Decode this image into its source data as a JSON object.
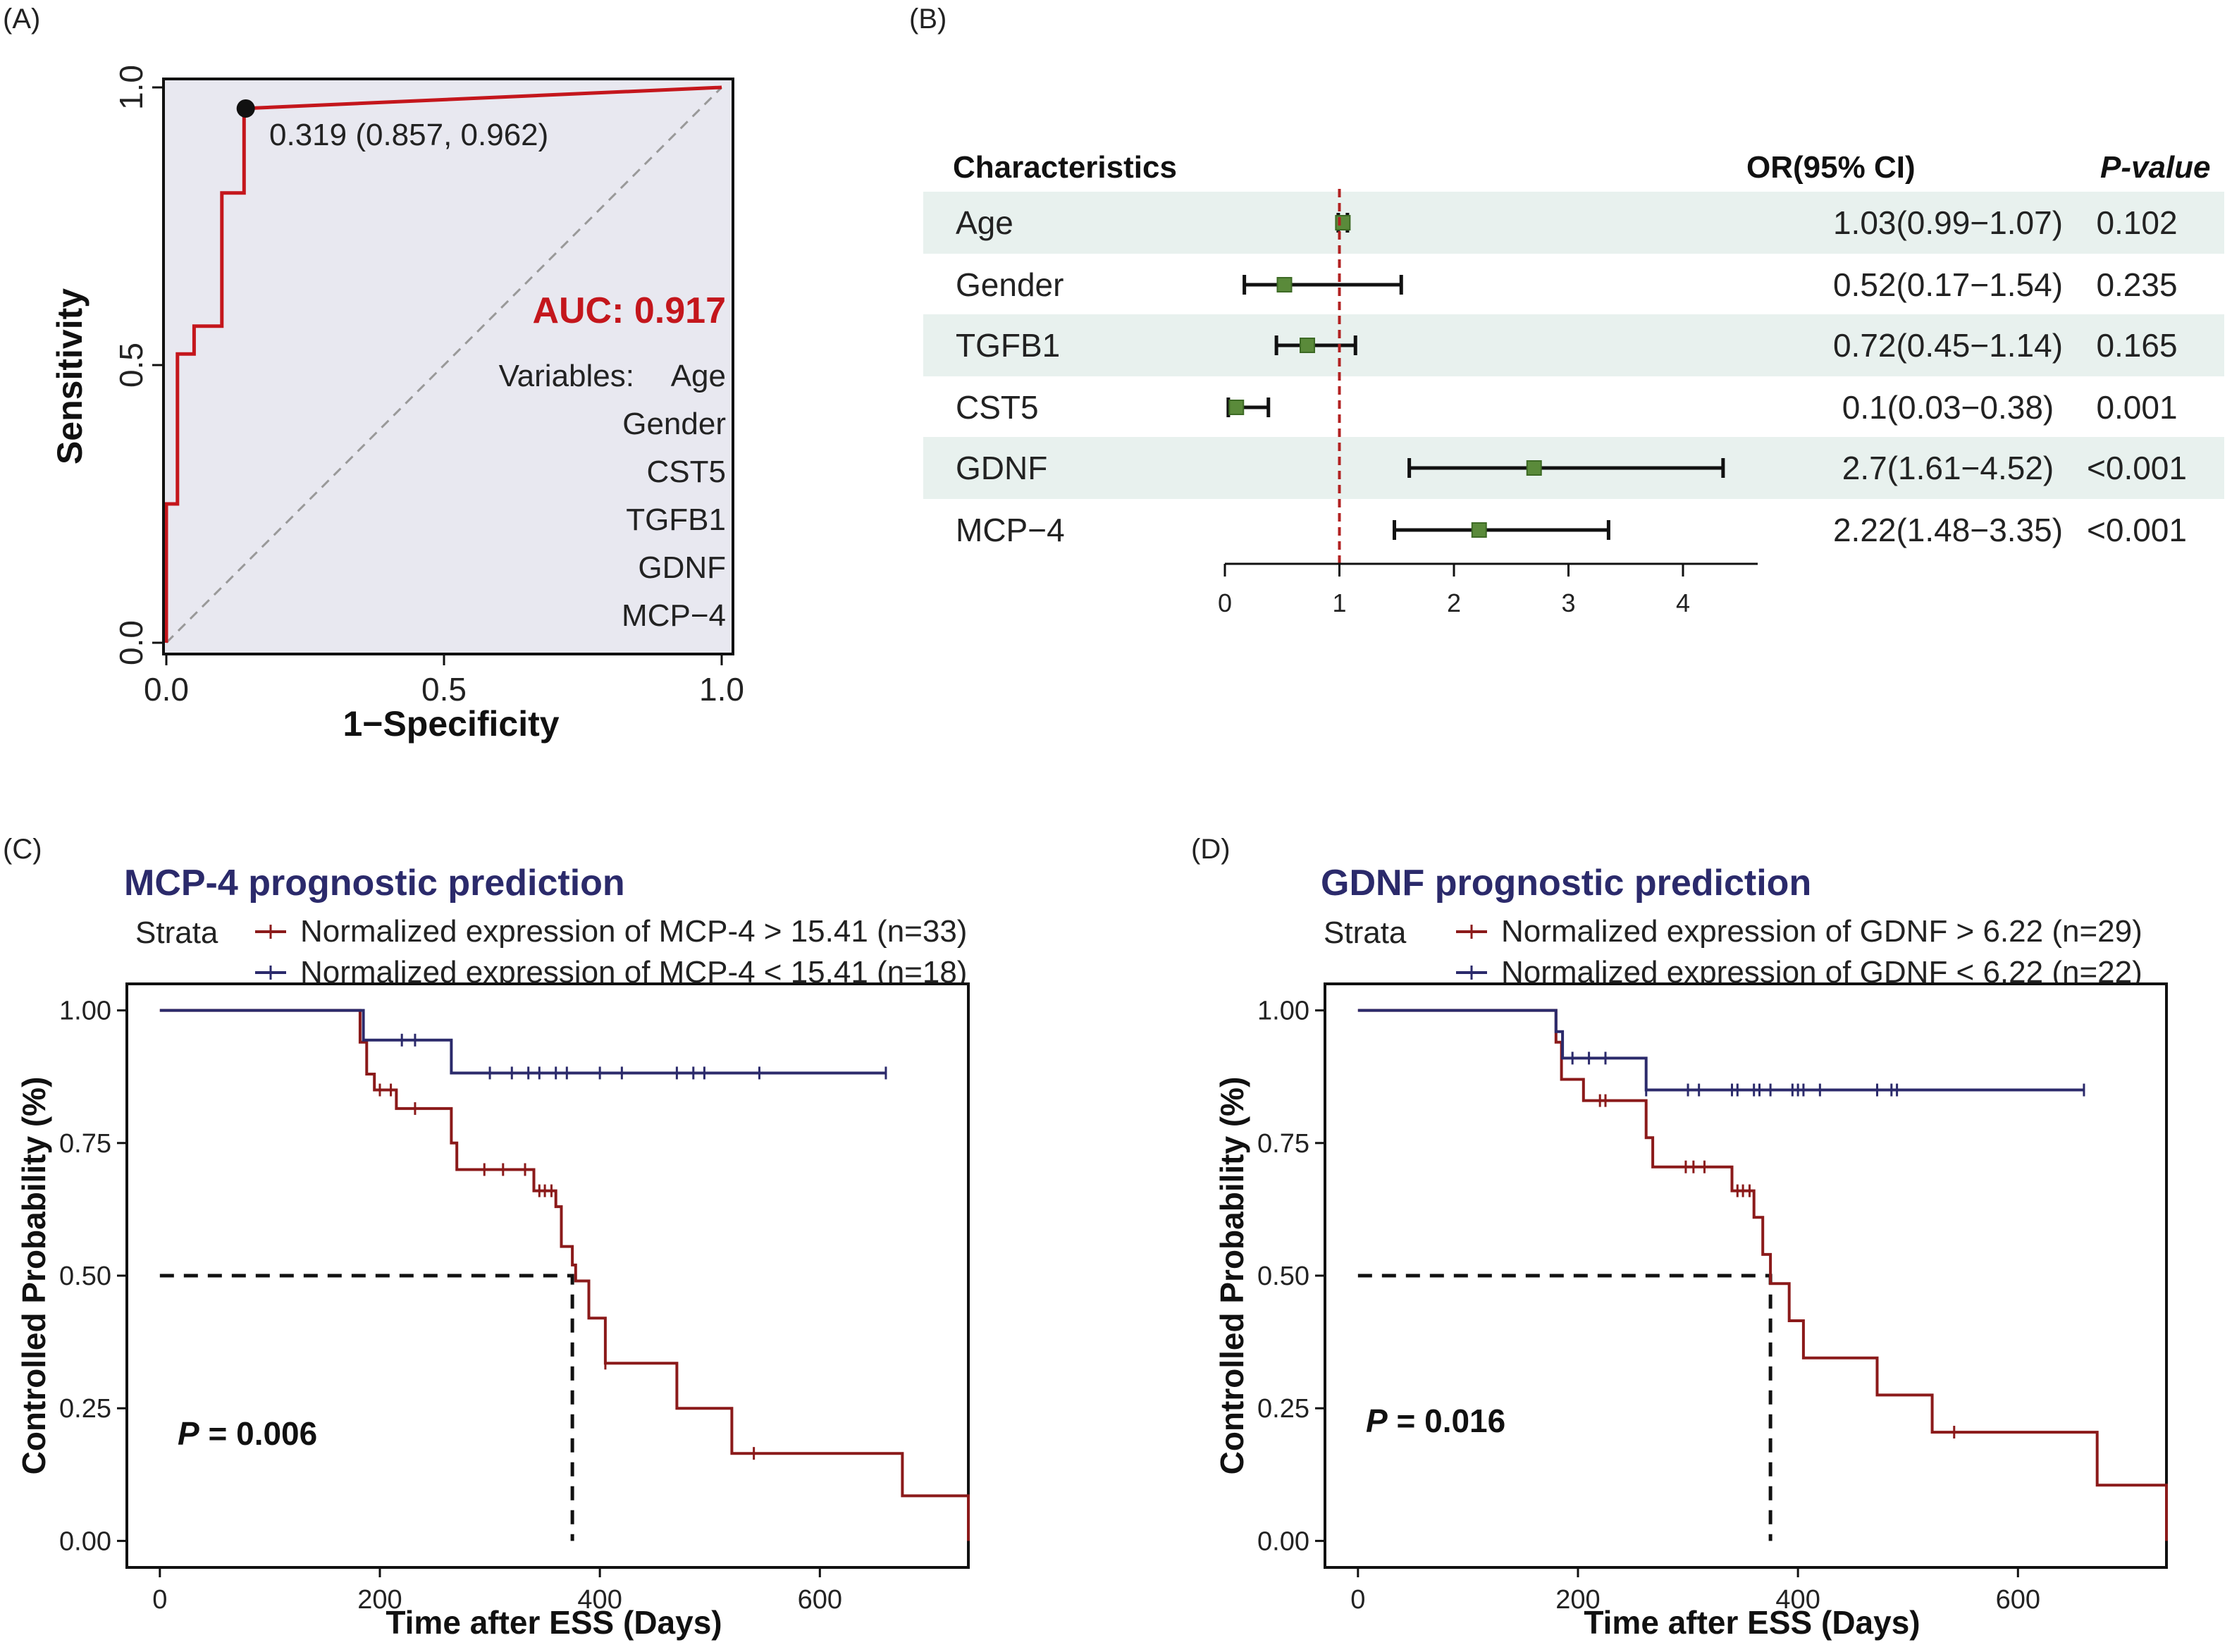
{
  "colors": {
    "roc_line": "#c4161c",
    "roc_fill": "#e8e8f0",
    "auc_text": "#c4161c",
    "forest_band": "#e8f1ee",
    "forest_box": "#5a8a3a",
    "ref_line": "#b22222",
    "km_red": "#8b1a1a",
    "km_blue": "#2b2a6b",
    "km_title": "#2b2a6b"
  },
  "panel_a": {
    "label": "(A)",
    "xlabel": "1−Specificity",
    "ylabel": "Sensitivity",
    "x_ticks": [
      "0.0",
      "0.5",
      "1.0"
    ],
    "y_ticks": [
      "0.0",
      "0.5",
      "1.0"
    ],
    "auc_text": "AUC: 0.917",
    "cutoff_text": "0.319 (0.857, 0.962)",
    "variables_label": "Variables:",
    "variables": [
      "Age",
      "Gender",
      "CST5",
      "TGFB1",
      "GDNF",
      "MCP−4"
    ]
  },
  "panel_b": {
    "label": "(B)",
    "header_characteristics": "Characteristics",
    "header_or": "OR(95% CI)",
    "header_p": "P-value",
    "x_ticks": [
      "0",
      "1",
      "2",
      "3",
      "4"
    ]
  },
  "panel_c": {
    "label": "(C)",
    "title": "MCP-4 prognostic prediction",
    "strata_label": "Strata",
    "p_label": "P",
    "p_value": " = 0.006",
    "xlabel": "Time after ESS (Days)",
    "ylabel": "Controlled Probability (%)"
  },
  "panel_d": {
    "label": "(D)",
    "title": "GDNF prognostic prediction",
    "strata_label": "Strata",
    "p_label": "P",
    "p_value": " = 0.016",
    "xlabel": "Time after ESS (Days)",
    "ylabel": "Controlled Probability (%)"
  },
  "chart_data": [
    {
      "type": "line",
      "panel": "A",
      "title": "",
      "xlabel": "1−Specificity",
      "ylabel": "Sensitivity",
      "xlim": [
        0,
        1
      ],
      "ylim": [
        0,
        1
      ],
      "series": [
        {
          "x": [
            0,
            0,
            0.02,
            0.02,
            0.05,
            0.05,
            0.1,
            0.1,
            0.14,
            0.14,
            1
          ],
          "y": [
            0,
            0.25,
            0.25,
            0.52,
            0.52,
            0.57,
            0.57,
            0.81,
            0.81,
            0.962,
            1
          ]
        }
      ],
      "reference_line": [
        [
          0,
          0
        ],
        [
          1,
          1
        ]
      ],
      "optimal_point": {
        "x": 0.143,
        "y": 0.962
      },
      "annotations": [
        "AUC: 0.917",
        "0.319 (0.857, 0.962)"
      ]
    },
    {
      "type": "forest",
      "panel": "B",
      "columns": [
        "Characteristics",
        "OR(95% CI)",
        "P-value"
      ],
      "xlim": [
        -0.1,
        4.5
      ],
      "x_ticks": [
        0,
        1,
        2,
        3,
        4
      ],
      "reference": 1,
      "rows": [
        {
          "name": "Age",
          "or": 1.03,
          "lo": 0.99,
          "hi": 1.07,
          "ci_text": "1.03(0.99−1.07)",
          "p": "0.102"
        },
        {
          "name": "Gender",
          "or": 0.52,
          "lo": 0.17,
          "hi": 1.54,
          "ci_text": "0.52(0.17−1.54)",
          "p": "0.235"
        },
        {
          "name": "TGFB1",
          "or": 0.72,
          "lo": 0.45,
          "hi": 1.14,
          "ci_text": "0.72(0.45−1.14)",
          "p": "0.165"
        },
        {
          "name": "CST5",
          "or": 0.1,
          "lo": 0.03,
          "hi": 0.38,
          "ci_text": "0.1(0.03−0.38)",
          "p": "0.001"
        },
        {
          "name": "GDNF",
          "or": 2.7,
          "lo": 1.61,
          "hi": 4.52,
          "ci_text": "2.7(1.61−4.52)",
          "p": "<0.001"
        },
        {
          "name": "MCP−4",
          "or": 2.22,
          "lo": 1.48,
          "hi": 3.35,
          "ci_text": "2.22(1.48−3.35)",
          "p": "<0.001"
        }
      ]
    },
    {
      "type": "line",
      "panel": "C",
      "title": "MCP-4 prognostic prediction",
      "xlabel": "Time after ESS (Days)",
      "ylabel": "Controlled Probability (%)",
      "xlim": [
        -30,
        735
      ],
      "ylim": [
        -0.05,
        1.05
      ],
      "x_ticks": [
        0,
        200,
        400,
        600
      ],
      "y_ticks": [
        "0.00",
        "0.25",
        "0.50",
        "0.75",
        "1.00"
      ],
      "median_line": {
        "x": 375,
        "y": 0.5
      },
      "series": [
        {
          "name": "Normalized expression of MCP-4 > 15.41  (n=33)",
          "color": "red",
          "steps": [
            [
              0,
              1.0
            ],
            [
              182,
              0.94
            ],
            [
              188,
              0.88
            ],
            [
              195,
              0.85
            ],
            [
              215,
              0.815
            ],
            [
              265,
              0.75
            ],
            [
              270,
              0.7
            ],
            [
              340,
              0.66
            ],
            [
              360,
              0.63
            ],
            [
              365,
              0.555
            ],
            [
              375,
              0.52
            ],
            [
              378,
              0.49
            ],
            [
              390,
              0.42
            ],
            [
              405,
              0.335
            ],
            [
              470,
              0.25
            ],
            [
              520,
              0.165
            ],
            [
              675,
              0.085
            ],
            [
              735,
              0.0
            ]
          ],
          "censor_times": [
            200,
            210,
            232,
            295,
            312,
            332,
            345,
            350,
            356,
            405,
            540
          ]
        },
        {
          "name": "Normalized expression of MCP-4 < 15.41 (n=18)",
          "color": "blue",
          "steps": [
            [
              0,
              1.0
            ],
            [
              185,
              0.944
            ],
            [
              265,
              0.882
            ]
          ],
          "end_x": 660,
          "censor_times": [
            220,
            232,
            300,
            320,
            335,
            345,
            360,
            370,
            400,
            420,
            470,
            485,
            495,
            545,
            660
          ]
        }
      ]
    },
    {
      "type": "line",
      "panel": "D",
      "title": "GDNF prognostic prediction",
      "xlabel": "Time after ESS (Days)",
      "ylabel": "Controlled Probability (%)",
      "xlim": [
        -30,
        735
      ],
      "ylim": [
        -0.05,
        1.05
      ],
      "x_ticks": [
        0,
        200,
        400,
        600
      ],
      "y_ticks": [
        "0.00",
        "0.25",
        "0.50",
        "0.75",
        "1.00"
      ],
      "median_line": {
        "x": 375,
        "y": 0.5
      },
      "series": [
        {
          "name": "Normalized expression of GDNF > 6.22 (n=29)",
          "color": "red",
          "steps": [
            [
              0,
              1.0
            ],
            [
              180,
              0.94
            ],
            [
              185,
              0.87
            ],
            [
              205,
              0.83
            ],
            [
              262,
              0.76
            ],
            [
              268,
              0.705
            ],
            [
              340,
              0.66
            ],
            [
              360,
              0.61
            ],
            [
              368,
              0.54
            ],
            [
              375,
              0.485
            ],
            [
              392,
              0.415
            ],
            [
              405,
              0.345
            ],
            [
              472,
              0.275
            ],
            [
              522,
              0.205
            ],
            [
              672,
              0.105
            ],
            [
              735,
              0.0
            ]
          ],
          "censor_times": [
            220,
            225,
            298,
            305,
            315,
            345,
            350,
            356,
            542
          ]
        },
        {
          "name": "Normalized expression of GDNF < 6.22 (n=22)",
          "color": "blue",
          "steps": [
            [
              0,
              1.0
            ],
            [
              180,
              0.96
            ],
            [
              186,
              0.91
            ],
            [
              262,
              0.85
            ]
          ],
          "end_x": 660,
          "censor_times": [
            195,
            210,
            225,
            262,
            300,
            310,
            340,
            345,
            360,
            365,
            375,
            395,
            400,
            405,
            420,
            472,
            485,
            490,
            660
          ]
        }
      ]
    }
  ]
}
